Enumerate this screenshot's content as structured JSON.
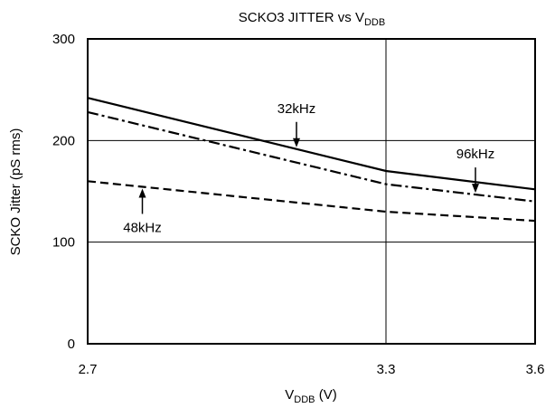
{
  "chart_data": {
    "type": "line",
    "title": {
      "main": "SCKO3 JITTER  vs V",
      "sub": "DDB"
    },
    "xlabel": {
      "main": "V",
      "sub": "DDB",
      "suffix": " (V)"
    },
    "ylabel": "SCKO Jitter (pS rms)",
    "xlim": [
      2.7,
      3.6
    ],
    "ylim": [
      0,
      300
    ],
    "xticks": [
      2.7,
      3.3,
      3.6
    ],
    "xtick_labels": [
      "2.7",
      "3.3",
      "3.6"
    ],
    "yticks": [
      0,
      100,
      200,
      300
    ],
    "ytick_labels": [
      "0",
      "100",
      "200",
      "300"
    ],
    "grid": true,
    "series": [
      {
        "name": "32kHz",
        "style": "solid",
        "x": [
          2.7,
          3.3,
          3.6
        ],
        "y": [
          242,
          170,
          152
        ]
      },
      {
        "name": "96kHz",
        "style": "dashdot",
        "x": [
          2.7,
          3.3,
          3.6
        ],
        "y": [
          228,
          157,
          140
        ]
      },
      {
        "name": "48kHz",
        "style": "dashed",
        "x": [
          2.7,
          3.3,
          3.6
        ],
        "y": [
          160,
          130,
          121
        ]
      }
    ],
    "annotations": [
      {
        "text": "32kHz",
        "series": "32kHz",
        "direction": "down",
        "arrow_x": 3.12
      },
      {
        "text": "96kHz",
        "series": "96kHz",
        "direction": "down",
        "arrow_x": 3.48
      },
      {
        "text": "48kHz",
        "series": "48kHz",
        "direction": "up",
        "arrow_x": 2.81
      }
    ]
  }
}
